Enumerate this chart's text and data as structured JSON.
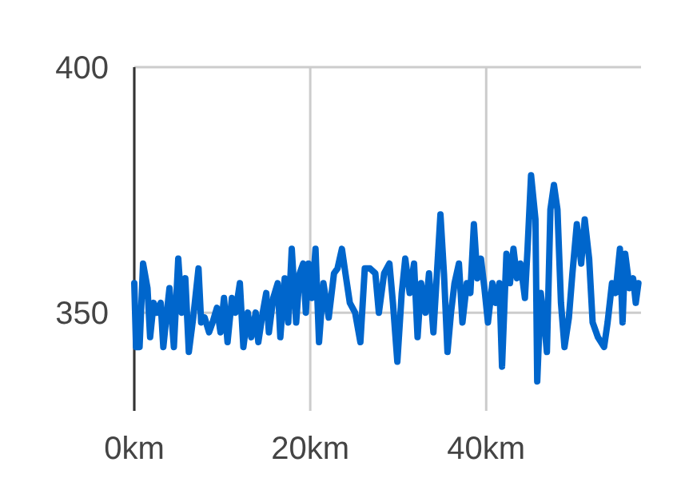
{
  "chart_data": {
    "type": "line",
    "x": [
      0,
      0.2,
      0.6,
      1.0,
      1.5,
      1.8,
      2.2,
      2.6,
      3.0,
      3.3,
      3.7,
      4.0,
      4.5,
      5.0,
      5.4,
      5.8,
      6.2,
      6.7,
      7.3,
      7.6,
      8.0,
      8.5,
      8.9,
      9.4,
      9.8,
      10.2,
      10.6,
      11.1,
      11.5,
      12.0,
      12.4,
      12.9,
      13.3,
      13.8,
      14.1,
      14.6,
      15.0,
      15.3,
      15.8,
      16.3,
      16.6,
      17.1,
      17.5,
      17.9,
      18.4,
      18.8,
      19.2,
      19.5,
      19.8,
      20.2,
      20.6,
      21.0,
      21.5,
      22.1,
      22.7,
      23.1,
      23.6,
      24.0,
      24.5,
      25.1,
      25.7,
      26.2,
      26.8,
      27.4,
      27.8,
      28.4,
      29.0,
      29.4,
      29.9,
      30.4,
      30.8,
      31.3,
      31.8,
      32.2,
      32.6,
      33.1,
      33.5,
      34.0,
      34.3,
      34.8,
      35.2,
      35.6,
      36.0,
      36.4,
      36.9,
      37.3,
      37.8,
      38.2,
      38.6,
      39.0,
      39.4,
      39.8,
      40.2,
      40.7,
      41.1,
      41.5,
      41.8,
      42.3,
      42.7,
      43.1,
      43.5,
      43.9,
      44.4,
      44.7,
      45.1,
      45.6,
      45.8,
      46.2,
      46.6,
      46.9,
      47.3,
      47.7,
      48.1,
      48.5,
      48.9,
      49.4,
      49.8,
      50.3,
      50.8,
      51.2,
      51.7,
      52.1,
      52.7,
      53.4,
      53.8,
      54.3,
      54.7,
      55.2,
      55.5,
      55.8,
      56.3,
      56.7,
      57.0,
      57.3
    ],
    "series": [
      {
        "color": "#0066cc",
        "values": [
          356,
          343,
          343,
          360,
          355,
          345,
          352,
          350,
          352,
          343,
          350,
          355,
          343,
          361,
          350,
          357,
          342,
          349,
          359,
          348,
          349,
          346,
          348,
          351,
          346,
          353,
          344,
          353,
          350,
          356,
          343,
          350,
          345,
          350,
          344,
          350,
          354,
          346,
          353,
          356,
          345,
          357,
          348,
          363,
          348,
          358,
          360,
          350,
          360,
          353,
          363,
          344,
          356,
          349,
          358,
          359,
          363,
          358,
          352,
          350,
          344,
          359,
          359,
          358,
          350,
          358,
          360,
          352,
          340,
          354,
          361,
          354,
          360,
          345,
          356,
          350,
          358,
          346,
          355,
          370,
          358,
          342,
          350,
          356,
          360,
          348,
          356,
          354,
          368,
          357,
          361,
          355,
          348,
          356,
          352,
          356,
          339,
          362,
          356,
          363,
          357,
          360,
          353,
          363,
          378,
          369,
          336,
          354,
          348,
          342,
          371,
          376,
          371,
          352,
          343,
          349,
          358,
          368,
          360,
          369,
          361,
          348,
          345,
          343,
          348,
          356,
          354,
          363,
          348,
          362,
          355,
          357,
          352,
          356
        ]
      }
    ],
    "xlim": [
      0,
      57.6
    ],
    "xticks": [
      {
        "value": 0,
        "label": "0km"
      },
      {
        "value": 20,
        "label": "20km"
      },
      {
        "value": 40,
        "label": "40km"
      }
    ],
    "ylim": [
      330,
      400
    ],
    "yticks": [
      350,
      400
    ],
    "grid": true,
    "line_style": "solid",
    "marker": "none"
  }
}
